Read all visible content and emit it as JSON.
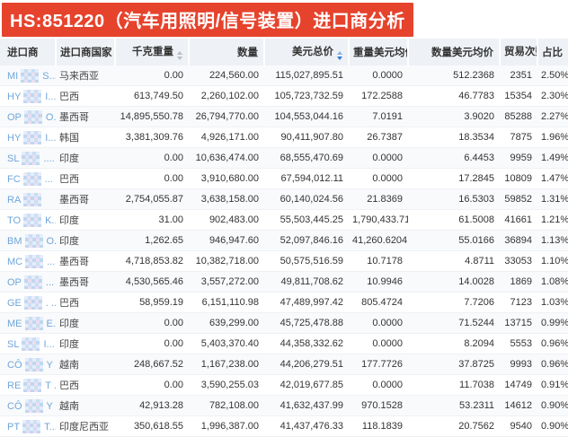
{
  "title": "HS:851220（汽车用照明/信号装置）进口商分析",
  "colors": {
    "title_bg": "#e6432d",
    "link_blue": "#6fa6da",
    "sort_active": "#2e7cd6",
    "header_bg": "#eef1f5"
  },
  "table": {
    "columns": [
      {
        "label": "进口商",
        "align": "left",
        "sort": "none"
      },
      {
        "label": "进口商国家",
        "align": "left",
        "sort": "none"
      },
      {
        "label": "千克重量",
        "align": "right",
        "sort": "inactive"
      },
      {
        "label": "数量",
        "align": "right",
        "sort": "none"
      },
      {
        "label": "美元总价",
        "align": "right",
        "sort": "desc"
      },
      {
        "label": "重量美元均价",
        "align": "right",
        "sort": "none"
      },
      {
        "label": "数量美元均价",
        "align": "right",
        "sort": "none"
      },
      {
        "label": "贸易次数",
        "align": "right",
        "sort": "inactive"
      },
      {
        "label": "占比",
        "align": "right",
        "sort": "none"
      }
    ],
    "rows": [
      {
        "prefix": "MI",
        "suffix": "S...",
        "country": "马来西亚",
        "kg": "0.00",
        "qty": "224,560.00",
        "usd": "115,027,895.51",
        "w_avg": "0.0000",
        "q_avg": "512.2368",
        "trades": "2351",
        "share": "2.50%"
      },
      {
        "prefix": "HY",
        "suffix": "I...",
        "country": "巴西",
        "kg": "613,749.50",
        "qty": "2,260,102.00",
        "usd": "105,723,732.59",
        "w_avg": "172.2588",
        "q_avg": "46.7783",
        "trades": "15354",
        "share": "2.30%"
      },
      {
        "prefix": "OP",
        "suffix": "O...",
        "country": "墨西哥",
        "kg": "14,895,550.78",
        "qty": "26,794,770.00",
        "usd": "104,553,044.16",
        "w_avg": "7.0191",
        "q_avg": "3.9020",
        "trades": "85288",
        "share": "2.27%"
      },
      {
        "prefix": "HY",
        "suffix": "I...",
        "country": "韩国",
        "kg": "3,381,309.76",
        "qty": "4,926,171.00",
        "usd": "90,411,907.80",
        "w_avg": "26.7387",
        "q_avg": "18.3534",
        "trades": "7875",
        "share": "1.96%"
      },
      {
        "prefix": "SL",
        "suffix": "....",
        "country": "印度",
        "kg": "0.00",
        "qty": "10,636,474.00",
        "usd": "68,555,470.69",
        "w_avg": "0.0000",
        "q_avg": "6.4453",
        "trades": "9959",
        "share": "1.49%"
      },
      {
        "prefix": "FC",
        "suffix": "...",
        "country": "巴西",
        "kg": "0.00",
        "qty": "3,910,680.00",
        "usd": "67,594,012.11",
        "w_avg": "0.0000",
        "q_avg": "17.2845",
        "trades": "10809",
        "share": "1.47%"
      },
      {
        "prefix": "RA",
        "suffix": "",
        "country": "墨西哥",
        "kg": "2,754,055.87",
        "qty": "3,638,158.00",
        "usd": "60,140,024.56",
        "w_avg": "21.8369",
        "q_avg": "16.5303",
        "trades": "59852",
        "share": "1.31%"
      },
      {
        "prefix": "TO",
        "suffix": "K...",
        "country": "印度",
        "kg": "31.00",
        "qty": "902,483.00",
        "usd": "55,503,445.25",
        "w_avg": "1,790,433.7177",
        "q_avg": "61.5008",
        "trades": "41661",
        "share": "1.21%"
      },
      {
        "prefix": "BM",
        "suffix": "O...",
        "country": "印度",
        "kg": "1,262.65",
        "qty": "946,947.60",
        "usd": "52,097,846.16",
        "w_avg": "41,260.6204",
        "q_avg": "55.0166",
        "trades": "36894",
        "share": "1.13%"
      },
      {
        "prefix": "MC",
        "suffix": "...",
        "country": "墨西哥",
        "kg": "4,718,853.82",
        "qty": "10,382,718.00",
        "usd": "50,575,516.59",
        "w_avg": "10.7178",
        "q_avg": "4.8711",
        "trades": "33053",
        "share": "1.10%"
      },
      {
        "prefix": "OP",
        "suffix": "...",
        "country": "墨西哥",
        "kg": "4,530,565.46",
        "qty": "3,557,272.00",
        "usd": "49,811,708.62",
        "w_avg": "10.9946",
        "q_avg": "14.0028",
        "trades": "1869",
        "share": "1.08%"
      },
      {
        "prefix": "GE",
        "suffix": ". ...",
        "country": "巴西",
        "kg": "58,959.19",
        "qty": "6,151,110.98",
        "usd": "47,489,997.42",
        "w_avg": "805.4724",
        "q_avg": "7.7206",
        "trades": "7123",
        "share": "1.03%"
      },
      {
        "prefix": "ME",
        "suffix": "E...",
        "country": "印度",
        "kg": "0.00",
        "qty": "639,299.00",
        "usd": "45,725,478.88",
        "w_avg": "0.0000",
        "q_avg": "71.5244",
        "trades": "13715",
        "share": "0.99%"
      },
      {
        "prefix": "SL",
        "suffix": "I...",
        "country": "印度",
        "kg": "0.00",
        "qty": "5,403,370.40",
        "usd": "44,358,332.62",
        "w_avg": "0.0000",
        "q_avg": "8.2094",
        "trades": "5553",
        "share": "0.96%"
      },
      {
        "prefix": "CÔ",
        "suffix": "Y ...",
        "country": "越南",
        "kg": "248,667.52",
        "qty": "1,167,238.00",
        "usd": "44,206,279.51",
        "w_avg": "177.7726",
        "q_avg": "37.8725",
        "trades": "9993",
        "share": "0.96%"
      },
      {
        "prefix": "RE",
        "suffix": "T ...",
        "country": "巴西",
        "kg": "0.00",
        "qty": "3,590,255.03",
        "usd": "42,019,677.85",
        "w_avg": "0.0000",
        "q_avg": "11.7038",
        "trades": "14749",
        "share": "0.91%"
      },
      {
        "prefix": "CÔ",
        "suffix": "Y ...",
        "country": "越南",
        "kg": "42,913.28",
        "qty": "782,108.00",
        "usd": "41,632,437.99",
        "w_avg": "970.1528",
        "q_avg": "53.2311",
        "trades": "14612",
        "share": "0.90%"
      },
      {
        "prefix": "PT",
        "suffix": "T...",
        "country": "印度尼西亚",
        "kg": "350,618.55",
        "qty": "1,996,387.00",
        "usd": "41,437,476.33",
        "w_avg": "118.1839",
        "q_avg": "20.7562",
        "trades": "9540",
        "share": "0.90%"
      }
    ]
  }
}
